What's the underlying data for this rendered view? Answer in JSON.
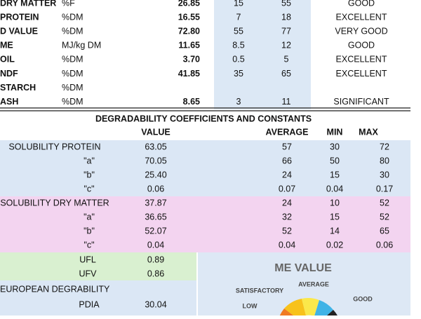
{
  "top_table": {
    "rows": [
      [
        "DRY MATTER",
        "%F",
        "26.85",
        "15",
        "55",
        "GOOD"
      ],
      [
        "PROTEIN",
        "%DM",
        "16.55",
        "7",
        "18",
        "EXCELLENT"
      ],
      [
        "D VALUE",
        "%DM",
        "72.80",
        "55",
        "77",
        "VERY GOOD"
      ],
      [
        "ME",
        "MJ/kg DM",
        "11.65",
        "8.5",
        "12",
        "GOOD"
      ],
      [
        "OIL",
        "%DM",
        "3.70",
        "0.5",
        "5",
        "EXCELLENT"
      ],
      [
        "NDF",
        "%DM",
        "41.85",
        "35",
        "65",
        "EXCELLENT"
      ],
      [
        "STARCH",
        "%DM",
        null,
        null,
        null,
        null
      ],
      [
        "ASH",
        "%DM",
        "8.65",
        "3",
        "11",
        "SIGNIFICANT"
      ]
    ]
  },
  "degradability": {
    "title": "DEGRADABILITY COEFFICIENTS AND CONSTANTS",
    "headers": [
      "VALUE",
      "AVERAGE",
      "MIN",
      "MAX"
    ],
    "rows": [
      [
        "SOLUBILITY PROTEIN",
        "63.05",
        "57",
        "30",
        "72"
      ],
      [
        "\"a\"",
        "70.05",
        "66",
        "50",
        "80"
      ],
      [
        "\"b\"",
        "25.40",
        "24",
        "15",
        "30"
      ],
      [
        "\"c\"",
        "0.06",
        "0.07",
        "0.04",
        "0.17"
      ],
      [
        "SOLUBILITY DRY MATTER",
        "37.87",
        "24",
        "10",
        "52"
      ],
      [
        "\"a\"",
        "36.65",
        "32",
        "15",
        "52"
      ],
      [
        "\"b\"",
        "52.07",
        "52",
        "14",
        "65"
      ],
      [
        "\"c\"",
        "0.04",
        "0.04",
        "0.02",
        "0.06"
      ]
    ]
  },
  "energy": {
    "rows": [
      [
        "UFL",
        "0.89"
      ],
      [
        "UFV",
        "0.86"
      ]
    ]
  },
  "european": {
    "title": "EUROPEAN DEGRABILITY",
    "rows": [
      [
        "PDIA",
        "30.04"
      ]
    ]
  },
  "gauge": {
    "title": "ME VALUE",
    "labels": [
      "SATISFACTORY",
      "AVERAGE",
      "GOOD",
      "LOW"
    ]
  }
}
